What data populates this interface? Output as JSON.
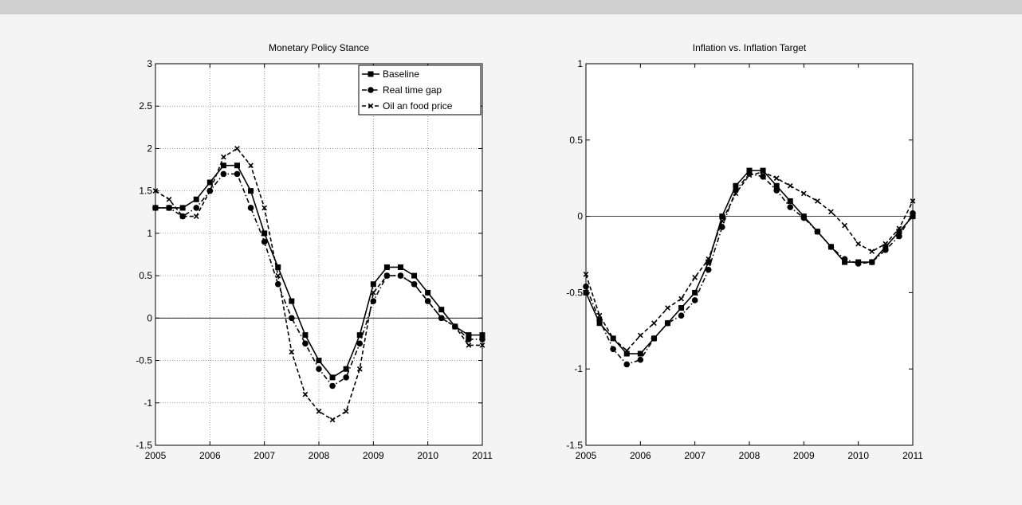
{
  "chart_data": [
    {
      "type": "line",
      "title": "Monetary Policy Stance",
      "x": [
        2005,
        2005.25,
        2005.5,
        2005.75,
        2006,
        2006.25,
        2006.5,
        2006.75,
        2007,
        2007.25,
        2007.5,
        2007.75,
        2008,
        2008.25,
        2008.5,
        2008.75,
        2009,
        2009.25,
        2009.5,
        2009.75,
        2010,
        2010.25,
        2010.5,
        2010.75,
        2011
      ],
      "xlim": [
        2005,
        2011
      ],
      "xticks": [
        2005,
        2006,
        2007,
        2008,
        2009,
        2010,
        2011
      ],
      "ylim": [
        -1.5,
        3
      ],
      "yticks": [
        -1.5,
        -1,
        -0.5,
        0,
        0.5,
        1,
        1.5,
        2,
        2.5,
        3
      ],
      "grid": true,
      "reference_line": 0,
      "legend": "upper right",
      "series": [
        {
          "name": "Baseline",
          "color": "#000000",
          "dash": "solid",
          "marker": "square",
          "values": [
            1.3,
            1.3,
            1.3,
            1.4,
            1.6,
            1.8,
            1.8,
            1.5,
            1.0,
            0.6,
            0.2,
            -0.2,
            -0.5,
            -0.7,
            -0.6,
            -0.2,
            0.4,
            0.6,
            0.6,
            0.5,
            0.3,
            0.1,
            -0.1,
            -0.2,
            -0.2
          ]
        },
        {
          "name": "Real time gap",
          "color": "#000000",
          "dash": "dashdot",
          "marker": "circle",
          "values": [
            1.3,
            1.3,
            1.2,
            1.3,
            1.5,
            1.7,
            1.7,
            1.3,
            0.9,
            0.4,
            0.0,
            -0.3,
            -0.6,
            -0.8,
            -0.7,
            -0.3,
            0.2,
            0.5,
            0.5,
            0.4,
            0.2,
            0.0,
            -0.1,
            -0.25,
            -0.25
          ]
        },
        {
          "name": "Oil an food price",
          "color": "#000000",
          "dash": "dashed",
          "marker": "x",
          "values": [
            1.5,
            1.4,
            1.2,
            1.2,
            1.5,
            1.9,
            2.0,
            1.8,
            1.3,
            0.5,
            -0.4,
            -0.9,
            -1.1,
            -1.2,
            -1.1,
            -0.6,
            0.3,
            0.5,
            0.5,
            0.4,
            0.2,
            0.0,
            -0.1,
            -0.32,
            -0.32
          ]
        }
      ]
    },
    {
      "type": "line",
      "title": "Inflation vs. Inflation Target",
      "x": [
        2005,
        2005.25,
        2005.5,
        2005.75,
        2006,
        2006.25,
        2006.5,
        2006.75,
        2007,
        2007.25,
        2007.5,
        2007.75,
        2008,
        2008.25,
        2008.5,
        2008.75,
        2009,
        2009.25,
        2009.5,
        2009.75,
        2010,
        2010.25,
        2010.5,
        2010.75,
        2011
      ],
      "xlim": [
        2005,
        2011
      ],
      "xticks": [
        2005,
        2006,
        2007,
        2008,
        2009,
        2010,
        2011
      ],
      "ylim": [
        -1.5,
        1
      ],
      "yticks": [
        -1.5,
        -1,
        -0.5,
        0,
        0.5,
        1
      ],
      "grid": false,
      "reference_line": 0,
      "series": [
        {
          "color": "#000000",
          "dash": "solid",
          "marker": "square",
          "values": [
            -0.5,
            -0.7,
            -0.8,
            -0.9,
            -0.9,
            -0.8,
            -0.7,
            -0.6,
            -0.5,
            -0.3,
            0.0,
            0.2,
            0.3,
            0.3,
            0.2,
            0.1,
            0.0,
            -0.1,
            -0.2,
            -0.3,
            -0.3,
            -0.3,
            -0.2,
            -0.1,
            0.0
          ]
        },
        {
          "color": "#000000",
          "dash": "dashdot",
          "marker": "circle",
          "values": [
            -0.46,
            -0.68,
            -0.87,
            -0.97,
            -0.94,
            -0.8,
            -0.7,
            -0.65,
            -0.55,
            -0.35,
            -0.07,
            0.17,
            0.28,
            0.26,
            0.17,
            0.06,
            -0.01,
            -0.1,
            -0.2,
            -0.28,
            -0.31,
            -0.3,
            -0.22,
            -0.13,
            0.02
          ]
        },
        {
          "color": "#000000",
          "dash": "dashed",
          "marker": "x",
          "values": [
            -0.38,
            -0.65,
            -0.8,
            -0.88,
            -0.78,
            -0.7,
            -0.6,
            -0.54,
            -0.4,
            -0.28,
            -0.03,
            0.15,
            0.27,
            0.29,
            0.25,
            0.2,
            0.15,
            0.1,
            0.03,
            -0.06,
            -0.18,
            -0.23,
            -0.18,
            -0.08,
            0.1
          ]
        }
      ]
    }
  ]
}
